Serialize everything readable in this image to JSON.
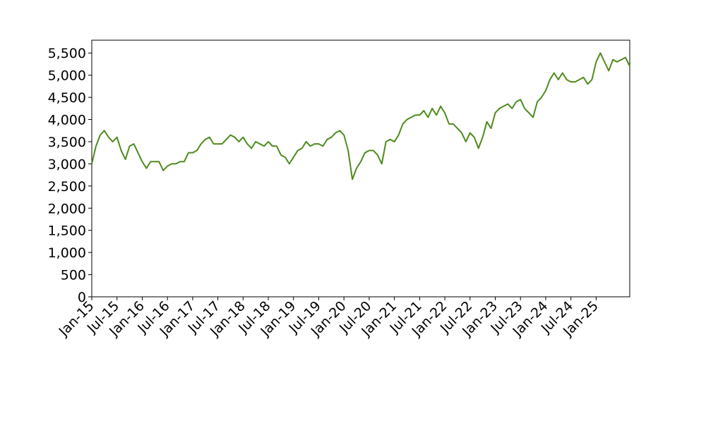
{
  "chart_data": {
    "type": "line",
    "color": "#4e8b1d",
    "x": [
      "2015-01",
      "2015-02",
      "2015-03",
      "2015-04",
      "2015-05",
      "2015-06",
      "2015-07",
      "2015-08",
      "2015-09",
      "2015-10",
      "2015-11",
      "2015-12",
      "2016-01",
      "2016-02",
      "2016-03",
      "2016-04",
      "2016-05",
      "2016-06",
      "2016-07",
      "2016-08",
      "2016-09",
      "2016-10",
      "2016-11",
      "2016-12",
      "2017-01",
      "2017-02",
      "2017-03",
      "2017-04",
      "2017-05",
      "2017-06",
      "2017-07",
      "2017-08",
      "2017-09",
      "2017-10",
      "2017-11",
      "2017-12",
      "2018-01",
      "2018-02",
      "2018-03",
      "2018-04",
      "2018-05",
      "2018-06",
      "2018-07",
      "2018-08",
      "2018-09",
      "2018-10",
      "2018-11",
      "2018-12",
      "2019-01",
      "2019-02",
      "2019-03",
      "2019-04",
      "2019-05",
      "2019-06",
      "2019-07",
      "2019-08",
      "2019-09",
      "2019-10",
      "2019-11",
      "2019-12",
      "2020-01",
      "2020-02",
      "2020-03",
      "2020-04",
      "2020-05",
      "2020-06",
      "2020-07",
      "2020-08",
      "2020-09",
      "2020-10",
      "2020-11",
      "2020-12",
      "2021-01",
      "2021-02",
      "2021-03",
      "2021-04",
      "2021-05",
      "2021-06",
      "2021-07",
      "2021-08",
      "2021-09",
      "2021-10",
      "2021-11",
      "2021-12",
      "2022-01",
      "2022-02",
      "2022-03",
      "2022-04",
      "2022-05",
      "2022-06",
      "2022-07",
      "2022-08",
      "2022-09",
      "2022-10",
      "2022-11",
      "2022-12",
      "2023-01",
      "2023-02",
      "2023-03",
      "2023-04",
      "2023-05",
      "2023-06",
      "2023-07",
      "2023-08",
      "2023-09",
      "2023-10",
      "2023-11",
      "2023-12",
      "2024-01",
      "2024-02",
      "2024-03",
      "2024-04",
      "2024-05",
      "2024-06",
      "2024-07",
      "2024-08",
      "2024-09",
      "2024-10",
      "2024-11",
      "2024-12",
      "2025-01",
      "2025-02",
      "2025-03",
      "2025-04",
      "2025-05",
      "2025-06",
      "2025-07",
      "2025-08",
      "2025-09"
    ],
    "values": [
      3000,
      3400,
      3650,
      3750,
      3600,
      3500,
      3600,
      3300,
      3100,
      3400,
      3450,
      3250,
      3050,
      2900,
      3050,
      3050,
      3050,
      2850,
      2950,
      3000,
      3000,
      3050,
      3050,
      3250,
      3250,
      3300,
      3450,
      3550,
      3600,
      3450,
      3450,
      3450,
      3550,
      3650,
      3600,
      3500,
      3600,
      3450,
      3350,
      3500,
      3450,
      3400,
      3500,
      3400,
      3400,
      3200,
      3150,
      3000,
      3150,
      3300,
      3350,
      3500,
      3400,
      3450,
      3450,
      3400,
      3550,
      3600,
      3700,
      3750,
      3650,
      3300,
      2650,
      2900,
      3050,
      3250,
      3300,
      3300,
      3200,
      3000,
      3500,
      3550,
      3500,
      3650,
      3900,
      4000,
      4050,
      4100,
      4100,
      4200,
      4050,
      4250,
      4100,
      4300,
      4150,
      3900,
      3900,
      3800,
      3700,
      3500,
      3700,
      3600,
      3350,
      3600,
      3950,
      3800,
      4150,
      4250,
      4300,
      4350,
      4250,
      4400,
      4450,
      4250,
      4150,
      4050,
      4400,
      4500,
      4650,
      4900,
      5050,
      4900,
      5050,
      4900,
      4850,
      4850,
      4900,
      4950,
      4800,
      4900,
      5300,
      5500,
      5300,
      5100,
      5350,
      5300,
      5350,
      5400,
      5200
    ],
    "xlim": [
      "2015-01",
      "2025-09"
    ],
    "xticks": [
      {
        "value": "2015-01",
        "label": "Jan-15"
      },
      {
        "value": "2015-07",
        "label": "Jul-15"
      },
      {
        "value": "2016-01",
        "label": "Jan-16"
      },
      {
        "value": "2016-07",
        "label": "Jul-16"
      },
      {
        "value": "2017-01",
        "label": "Jan-17"
      },
      {
        "value": "2017-07",
        "label": "Jul-17"
      },
      {
        "value": "2018-01",
        "label": "Jan-18"
      },
      {
        "value": "2018-07",
        "label": "Jul-18"
      },
      {
        "value": "2019-01",
        "label": "Jan-19"
      },
      {
        "value": "2019-07",
        "label": "Jul-19"
      },
      {
        "value": "2020-01",
        "label": "Jan-20"
      },
      {
        "value": "2020-07",
        "label": "Jul-20"
      },
      {
        "value": "2021-01",
        "label": "Jan-21"
      },
      {
        "value": "2021-07",
        "label": "Jul-21"
      },
      {
        "value": "2022-01",
        "label": "Jan-22"
      },
      {
        "value": "2022-07",
        "label": "Jul-22"
      },
      {
        "value": "2023-01",
        "label": "Jan-23"
      },
      {
        "value": "2023-07",
        "label": "Jul-23"
      },
      {
        "value": "2024-01",
        "label": "Jan-24"
      },
      {
        "value": "2024-07",
        "label": "Jul-24"
      },
      {
        "value": "2025-01",
        "label": "Jan-25"
      }
    ],
    "ylim": [
      0,
      5790
    ],
    "yticks": [
      0,
      500,
      {
        "value": 1000,
        "label": "1,000"
      },
      {
        "value": 1500,
        "label": "1,500"
      },
      {
        "value": 2000,
        "label": "2,000"
      },
      {
        "value": 2500,
        "label": "2,500"
      },
      {
        "value": 3000,
        "label": "3,000"
      },
      {
        "value": 3500,
        "label": "3,500"
      },
      {
        "value": 4000,
        "label": "4,000"
      },
      {
        "value": 4500,
        "label": "4,500"
      },
      {
        "value": 5000,
        "label": "5,000"
      },
      {
        "value": 5500,
        "label": "5,500"
      }
    ]
  }
}
